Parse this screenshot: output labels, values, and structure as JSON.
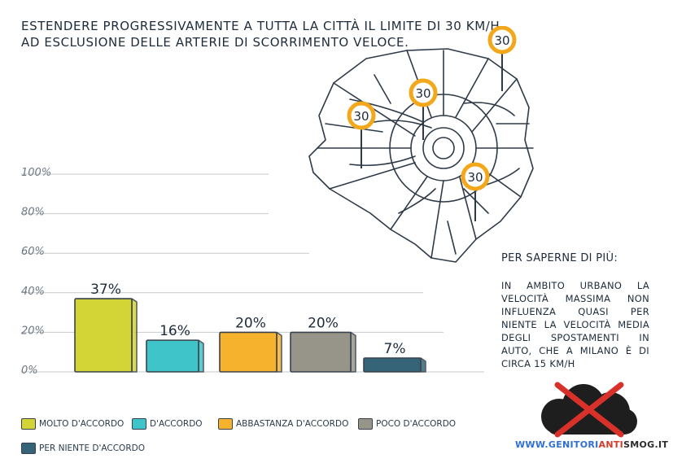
{
  "header": {
    "line1": "ESTENDERE PROGRESSIVAMENTE A TUTTA LA CITTÀ IL LIMITE DI 30 KM/H",
    "line2": "AD ESCLUSIONE DELLE ARTERIE DI SCORRIMENTO VELOCE."
  },
  "chart_data": {
    "type": "bar",
    "categories": [
      "MOLTO D'ACCORDO",
      "D'ACCORDO",
      "ABBASTANZA D'ACCORDO",
      "POCO D'ACCORDO",
      "PER NIENTE D'ACCORDO"
    ],
    "values": [
      37,
      16,
      20,
      20,
      7
    ],
    "data_labels": [
      "37%",
      "16%",
      "20%",
      "20%",
      "7%"
    ],
    "colors": [
      "#d3d435",
      "#3fc4c9",
      "#f6b12d",
      "#97958a",
      "#356479"
    ],
    "y_ticks": [
      0,
      20,
      40,
      60,
      80,
      100
    ],
    "y_tick_labels": [
      "0%",
      "20%",
      "40%",
      "60%",
      "80%",
      "100%"
    ],
    "ylim": [
      0,
      100
    ],
    "grid": true,
    "legend_placement": "bottom"
  },
  "info": {
    "heading": "PER SAPERNE DI PIÙ:",
    "body": "IN AMBITO URBANO LA VELOCITÀ MASSIMA NON INFLUENZA QUASI PER NIENTE LA VELOCITÀ MEDIA DEGLI SPOSTAMENTI IN AUTO, CHE A MILANO È DI CIRCA 15 KM/H"
  },
  "map": {
    "sign_text": "30"
  },
  "brand": {
    "prefix": "WWW.GENITORI",
    "middle": "ANTI",
    "suffix": "SMOG.IT"
  }
}
